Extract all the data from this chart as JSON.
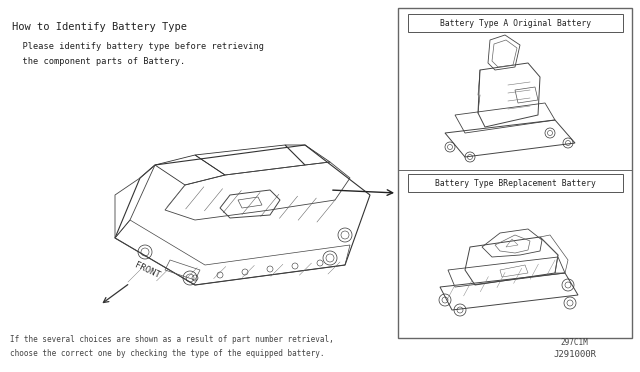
{
  "bg_color": "#ffffff",
  "title": "How to Identify Battery Type",
  "subtitle_line1": "  Please identify battery type before retrieving",
  "subtitle_line2": "  the component parts of Battery.",
  "footer_line1": "If the several choices are shown as a result of part number retrieval,",
  "footer_line2": "choose the correct one by checking the type of the equipped battery.",
  "ref1": "297C1M",
  "ref2": "J291000R",
  "label_type_a": "Battery Type A Original Battery",
  "label_type_b": "Battery Type BReplacement Battery",
  "front_label": "FRONT",
  "line_color": "#333333",
  "text_color": "#222222",
  "faint_color": "#888888"
}
